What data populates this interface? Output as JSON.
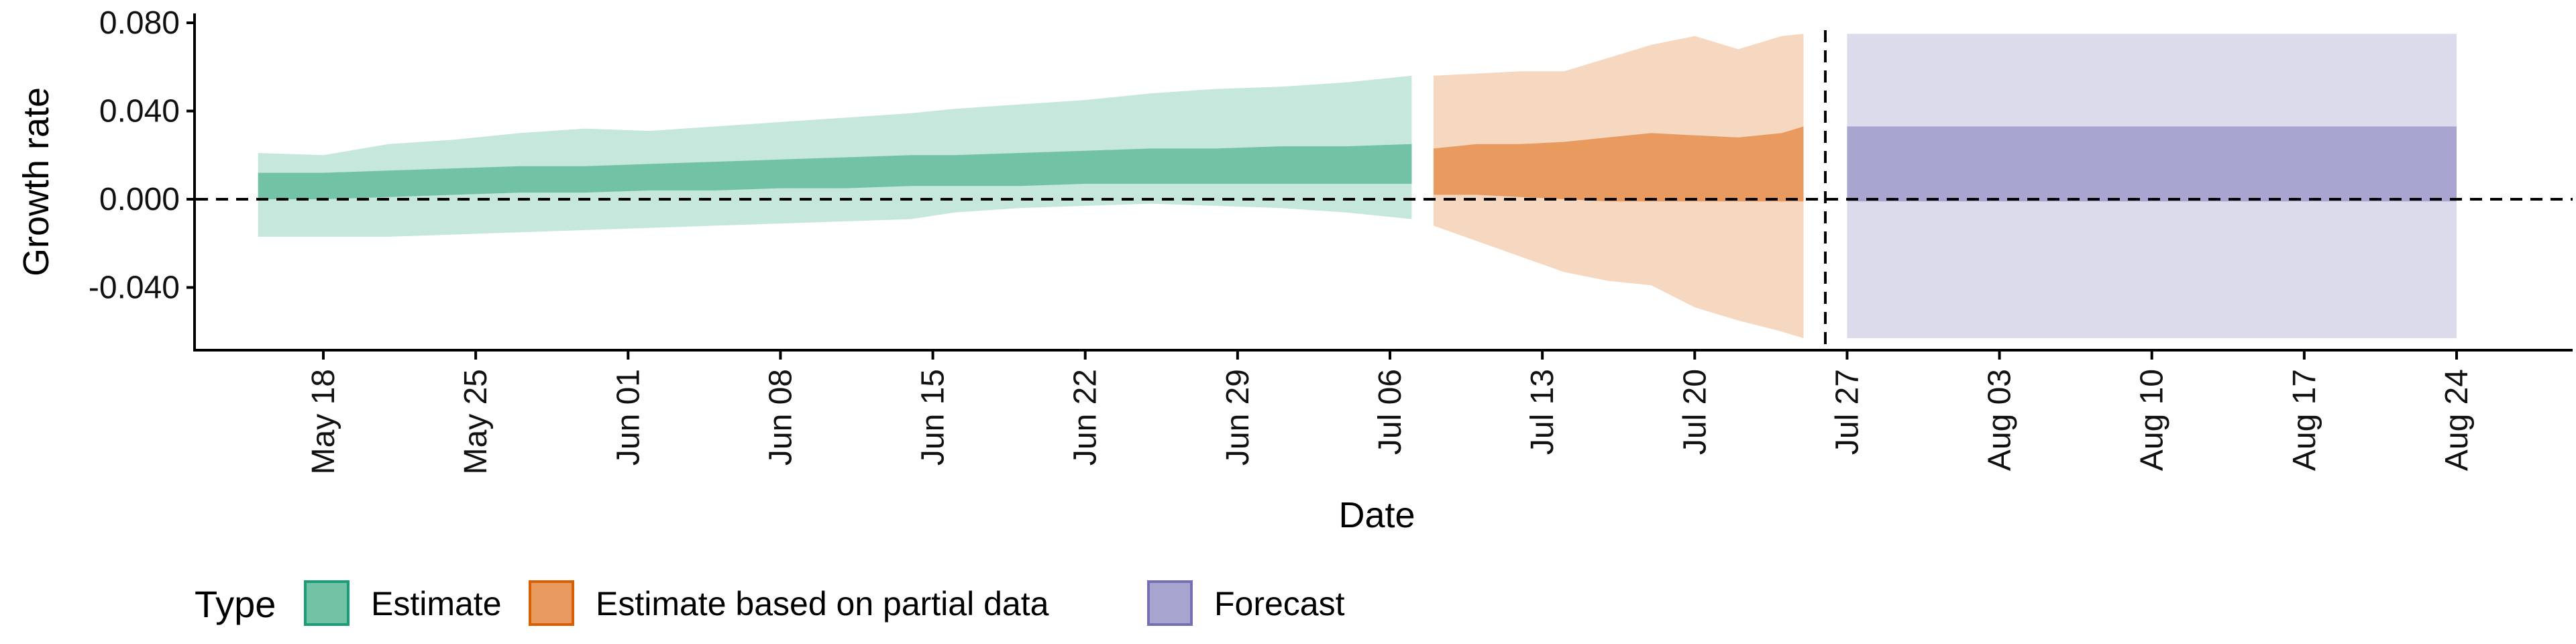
{
  "chart_data": {
    "type": "area",
    "xlabel": "Date",
    "ylabel": "Growth rate",
    "ylim": [
      -0.069,
      0.082
    ],
    "y_ticks": [
      "0.080",
      "0.040",
      "0.000",
      "-0.040"
    ],
    "y_tick_values": [
      0.08,
      0.04,
      0.0,
      -0.04
    ],
    "x_ticks": [
      "May 18",
      "May 25",
      "Jun 01",
      "Jun 08",
      "Jun 15",
      "Jun 22",
      "Jun 29",
      "Jul 06",
      "Jul 13",
      "Jul 20",
      "Jul 27",
      "Aug 03",
      "Aug 10",
      "Aug 17",
      "Aug 24"
    ],
    "reference_line_y": 0.0,
    "vertical_line_date": "Jul 26",
    "legend_title": "Type",
    "legend_position": "bottom-left",
    "series": [
      {
        "name": "Estimate",
        "color": "#1b9e77",
        "dates": [
          "May 15",
          "May 18",
          "May 21",
          "May 24",
          "May 27",
          "May 30",
          "Jun 02",
          "Jun 05",
          "Jun 08",
          "Jun 11",
          "Jun 14",
          "Jun 16",
          "Jun 19",
          "Jun 22",
          "Jun 25",
          "Jun 28",
          "Jul 01",
          "Jul 04",
          "Jul 07"
        ],
        "upper90": [
          0.021,
          0.02,
          0.025,
          0.027,
          0.03,
          0.032,
          0.031,
          0.033,
          0.035,
          0.037,
          0.039,
          0.041,
          0.043,
          0.045,
          0.048,
          0.05,
          0.051,
          0.053,
          0.056
        ],
        "upper50": [
          0.012,
          0.012,
          0.013,
          0.014,
          0.015,
          0.015,
          0.016,
          0.017,
          0.018,
          0.019,
          0.02,
          0.02,
          0.021,
          0.022,
          0.023,
          0.023,
          0.024,
          0.024,
          0.025
        ],
        "lower50": [
          0.0,
          0.0,
          0.001,
          0.002,
          0.003,
          0.003,
          0.004,
          0.004,
          0.005,
          0.005,
          0.006,
          0.006,
          0.006,
          0.007,
          0.007,
          0.007,
          0.007,
          0.007,
          0.007
        ],
        "lower90": [
          -0.017,
          -0.017,
          -0.017,
          -0.016,
          -0.015,
          -0.014,
          -0.013,
          -0.012,
          -0.011,
          -0.01,
          -0.009,
          -0.006,
          -0.004,
          -0.003,
          -0.002,
          -0.003,
          -0.004,
          -0.006,
          -0.009
        ]
      },
      {
        "name": "Estimate based on partial data",
        "color": "#d95f02",
        "dates": [
          "Jul 08",
          "Jul 10",
          "Jul 12",
          "Jul 14",
          "Jul 16",
          "Jul 18",
          "Jul 20",
          "Jul 22",
          "Jul 24",
          "Jul 25"
        ],
        "upper90": [
          0.056,
          0.057,
          0.058,
          0.058,
          0.064,
          0.07,
          0.074,
          0.068,
          0.074,
          0.075
        ],
        "upper50": [
          0.023,
          0.025,
          0.025,
          0.026,
          0.028,
          0.03,
          0.029,
          0.028,
          0.03,
          0.033
        ],
        "lower50": [
          0.002,
          0.002,
          0.001,
          0.0,
          -0.001,
          -0.001,
          -0.001,
          -0.001,
          -0.001,
          -0.001
        ],
        "lower90": [
          -0.012,
          -0.019,
          -0.026,
          -0.033,
          -0.037,
          -0.039,
          -0.049,
          -0.055,
          -0.06,
          -0.063
        ]
      },
      {
        "name": "Forecast",
        "color": "#7570b3",
        "dates": [
          "Jul 27",
          "Aug 24"
        ],
        "upper90": [
          0.075,
          0.075
        ],
        "upper50": [
          0.033,
          0.033
        ],
        "lower50": [
          -0.001,
          -0.001
        ],
        "lower90": [
          -0.063,
          -0.063
        ]
      }
    ]
  }
}
